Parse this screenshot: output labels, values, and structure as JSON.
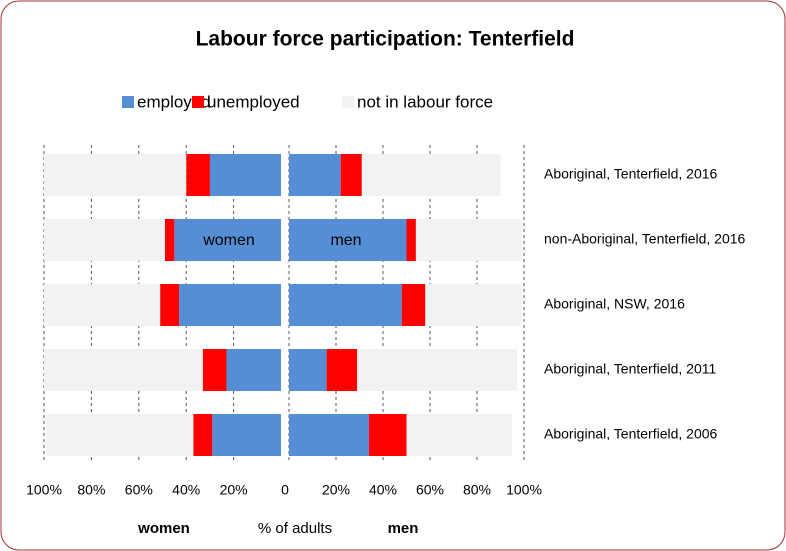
{
  "chart_data": {
    "type": "butterfly_bar",
    "title": "Labour force participation: Tenterfield",
    "categories": [
      "Aboriginal, Tenterfield, 2016",
      "non-Aboriginal, Tenterfield, 2016",
      "Aboriginal, NSW, 2016",
      "Aboriginal, Tenterfield, 2011",
      "Aboriginal, Tenterfield, 2006"
    ],
    "series": [
      {
        "name": "employed",
        "color": "#558ed5",
        "women": [
          30,
          45,
          43,
          23,
          29
        ],
        "men": [
          22,
          50,
          48,
          16,
          34
        ]
      },
      {
        "name": "unemployed",
        "color": "#ff0000",
        "women": [
          10,
          4,
          8,
          10,
          8
        ],
        "men": [
          9,
          4,
          10,
          13,
          16
        ]
      },
      {
        "name": "not in labour force",
        "color": "#f2f2f2",
        "women": [
          60,
          51,
          49,
          67,
          62
        ],
        "men": [
          59,
          45,
          41,
          68,
          45
        ]
      }
    ],
    "bar_labels": {
      "women": "women",
      "men": "men"
    },
    "women_axis_label": "women",
    "x_axis_label": "% of adults",
    "men_axis_label": "men",
    "women_color": "#e00000",
    "men_color": "#1010c0",
    "xlim": [
      0,
      100
    ],
    "women_xticks": [
      {
        "value": 100,
        "label": "100%"
      },
      {
        "value": 80,
        "label": "80%"
      },
      {
        "value": 60,
        "label": "60%"
      },
      {
        "value": 40,
        "label": "40%"
      },
      {
        "value": 20,
        "label": "20%"
      }
    ],
    "men_xticks": [
      0,
      {
        "value": 20,
        "label": "20%"
      },
      {
        "value": 40,
        "label": "40%"
      },
      {
        "value": 60,
        "label": "60%"
      },
      {
        "value": 80,
        "label": "80%"
      },
      {
        "value": 100,
        "label": "100%"
      }
    ],
    "grid": true
  }
}
